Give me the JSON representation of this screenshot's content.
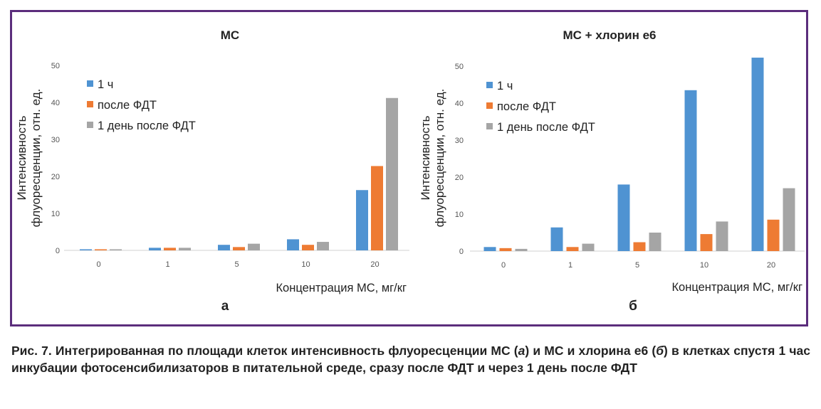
{
  "charts_meta": {
    "legend": [
      "1 ч",
      "после ФДТ",
      "1 день после ФДТ"
    ],
    "colors": [
      "#4f93d2",
      "#ee7b33",
      "#a5a5a5"
    ],
    "ylabel_line1": "Интенсивность",
    "ylabel_line2": "флуоресценции, отн. ед.",
    "xlabel": "Концентрация МС, мг/кг"
  },
  "chart_data": [
    {
      "type": "bar",
      "title": "МС",
      "panel": "а",
      "categories": [
        "0",
        "1",
        "5",
        "10",
        "20"
      ],
      "series": [
        {
          "name": "1 ч",
          "values": [
            0.3,
            0.7,
            1.5,
            3.0,
            16.3
          ]
        },
        {
          "name": "после ФДТ",
          "values": [
            0.3,
            0.7,
            0.9,
            1.5,
            22.8
          ]
        },
        {
          "name": "1 день после ФДТ",
          "values": [
            0.3,
            0.7,
            1.8,
            2.3,
            41.2
          ]
        }
      ],
      "ylim": [
        0,
        50
      ],
      "yticks": [
        0,
        10,
        20,
        30,
        40,
        50
      ],
      "xlabel": "Концентрация МС, мг/кг",
      "ylabel": "Интенсивность флуоресценции, отн. ед."
    },
    {
      "type": "bar",
      "title": "МС + хлорин е6",
      "panel": "б",
      "categories": [
        "0",
        "1",
        "5",
        "10",
        "20"
      ],
      "series": [
        {
          "name": "1 ч",
          "values": [
            1.1,
            6.4,
            18.0,
            43.5,
            52.3
          ]
        },
        {
          "name": "после ФДТ",
          "values": [
            0.8,
            1.1,
            2.4,
            4.6,
            8.5
          ]
        },
        {
          "name": "1 день после ФДТ",
          "values": [
            0.6,
            2.0,
            5.0,
            8.0,
            17.0
          ]
        }
      ],
      "ylim": [
        0,
        50
      ],
      "yticks": [
        0,
        10,
        20,
        30,
        40,
        50
      ],
      "xlabel": "Концентрация МС, мг/кг",
      "ylabel": "Интенсивность флуоресценции, отн. ед."
    }
  ],
  "caption": {
    "lead": "Рис. 7. Интегрированная по площади клеток интенсивность флуоресценции МС (",
    "a": "а",
    "mid": ") и МС и хлорина е6 (",
    "b": "б",
    "rest": ") в клетках спустя 1 час инкубации фотосенсибилизаторов в питательной среде, сразу после ФДТ и через 1 день после ФДТ"
  }
}
